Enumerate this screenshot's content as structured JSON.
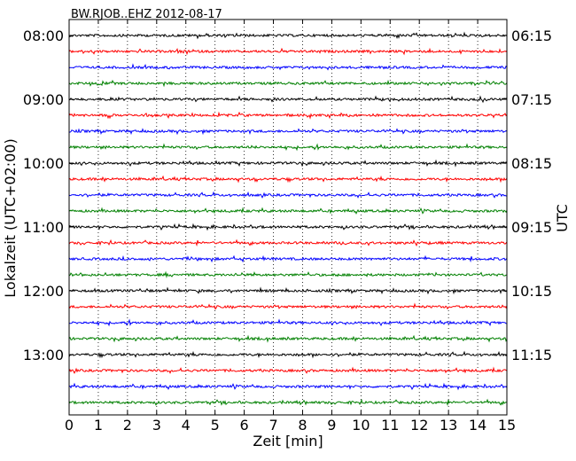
{
  "chart_data": {
    "type": "line",
    "title": "BW.RJOB..EHZ 2012-08-17",
    "xlabel": "Zeit  [min]",
    "ylabel_left": "Lokalzeit (UTC+02:00)",
    "ylabel_right": "UTC",
    "xlim": [
      0,
      15
    ],
    "x_ticks": [
      "0",
      "1",
      "2",
      "3",
      "4",
      "5",
      "6",
      "7",
      "8",
      "9",
      "10",
      "11",
      "12",
      "13",
      "14",
      "15"
    ],
    "left_tick_labels": [
      "08:00",
      "09:00",
      "10:00",
      "11:00",
      "12:00",
      "13:00"
    ],
    "right_tick_labels": [
      "06:15",
      "07:15",
      "08:15",
      "09:15",
      "10:15",
      "11:15"
    ],
    "vertical_grid": "dotted",
    "trace_colors": [
      "#000000",
      "#ff0000",
      "#0000ff",
      "#008000"
    ],
    "trace_count": 24,
    "trace_interval_min": 15,
    "first_trace_local": "08:00",
    "series_note": "Helicorder display: each row is 15 minutes of seismic amplitude data, colors cycle black, red, blue, green"
  }
}
